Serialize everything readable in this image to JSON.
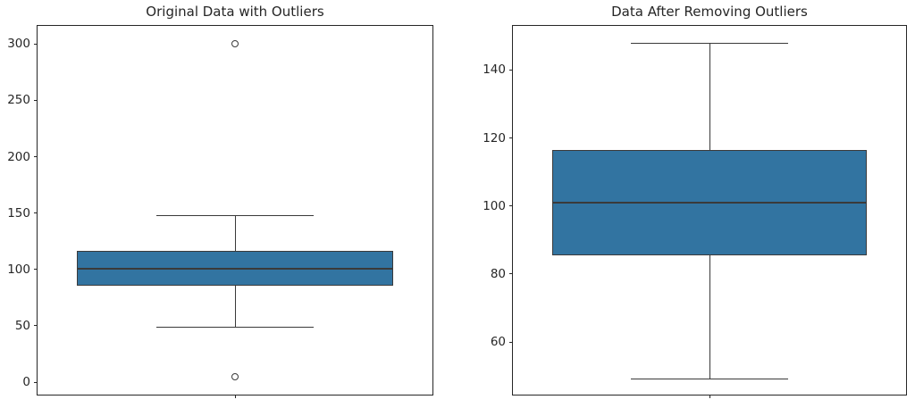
{
  "figure": {
    "background": "#ffffff",
    "spine_color": "#262626",
    "text_color": "#262626"
  },
  "chart_data": [
    {
      "type": "boxplot",
      "title": "Original Data with Outliers",
      "xlabel": "",
      "ylabel": "",
      "ylim": [
        -11,
        316
      ],
      "yticks": [
        0,
        50,
        100,
        150,
        200,
        250,
        300
      ],
      "grid": false,
      "box": {
        "whisker_low": 49,
        "q1": 85.5,
        "median": 101,
        "q3": 116.5,
        "whisker_high": 148
      },
      "outliers": [
        5,
        300
      ],
      "box_fill": "#3274a1",
      "line_color": "#3a3a3a"
    },
    {
      "type": "boxplot",
      "title": "Data After Removing Outliers",
      "xlabel": "",
      "ylabel": "",
      "ylim": [
        44.5,
        153
      ],
      "yticks": [
        60,
        80,
        100,
        120,
        140
      ],
      "grid": false,
      "box": {
        "whisker_low": 49,
        "q1": 85.5,
        "median": 101,
        "q3": 116.5,
        "whisker_high": 148
      },
      "outliers": [],
      "box_fill": "#3274a1",
      "line_color": "#3a3a3a"
    }
  ]
}
